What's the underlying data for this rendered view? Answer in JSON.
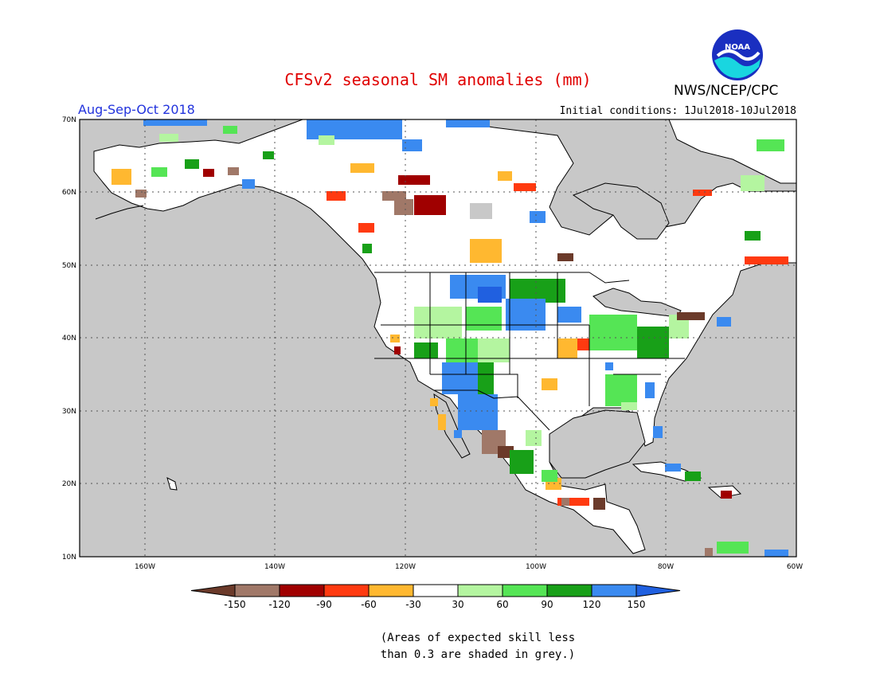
{
  "title": "CFSv2 seasonal SM anomalies (mm)",
  "source_label": "NWS/NCEP/CPC",
  "logo_text": "NOAA",
  "season_label": "Aug-Sep-Oct 2018",
  "initial_conditions": "Initial conditions: 1Jul2018-10Jul2018",
  "map": {
    "lat_ticks": [
      "70N",
      "60N",
      "50N",
      "40N",
      "30N",
      "20N",
      "10N"
    ],
    "lon_ticks": [
      "160W",
      "140W",
      "120W",
      "100W",
      "80W",
      "60W"
    ],
    "lat_range": [
      10,
      70
    ],
    "lon_range": [
      -170,
      -60
    ],
    "land_color": "#ffffff",
    "ocean_color": "#c8c8c8",
    "grid": "dotted"
  },
  "legend": {
    "labels": [
      "-150",
      "-120",
      "-90",
      "-60",
      "-30",
      "30",
      "60",
      "90",
      "120",
      "150"
    ],
    "colors": [
      "#6b3a2a",
      "#a07868",
      "#a00000",
      "#ff3a10",
      "#ffb830",
      "#ffffff",
      "#b4f5a0",
      "#55e555",
      "#18a018",
      "#3a8af0",
      "#2060e0"
    ]
  },
  "note": {
    "line1": "(Areas of expected skill less",
    "line2": "than 0.3 are shaded in grey.)"
  }
}
